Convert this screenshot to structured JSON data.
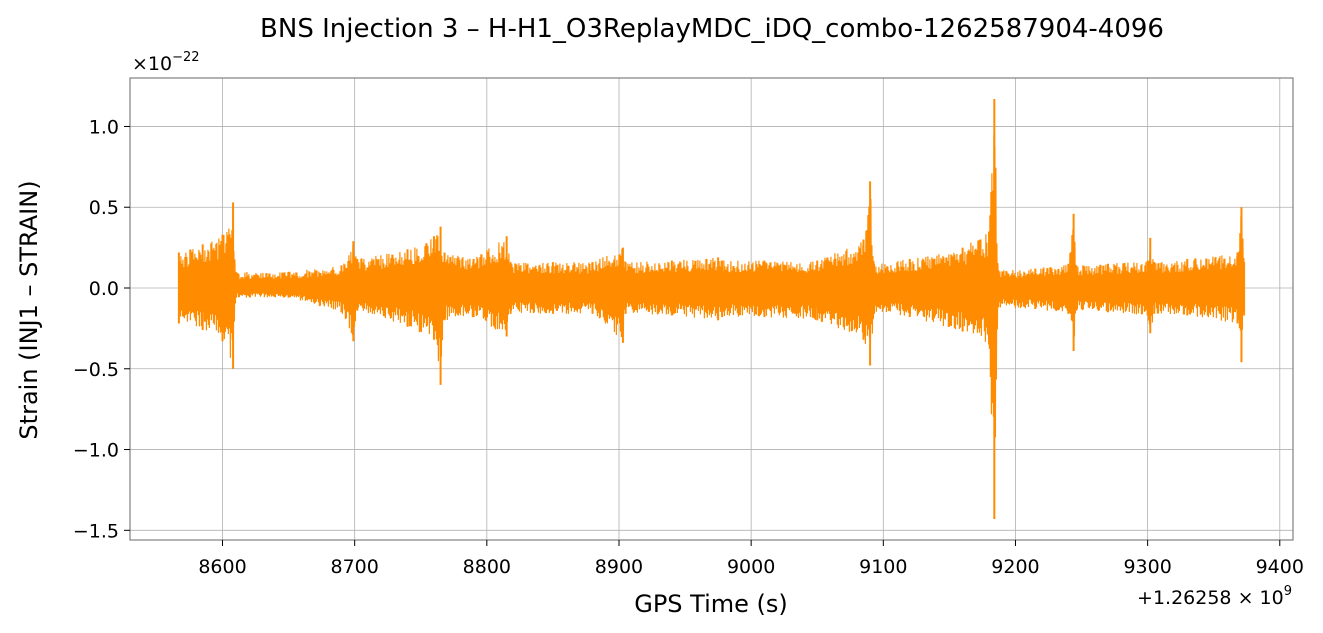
{
  "chart_data": {
    "type": "line",
    "title": "BNS Injection 3 – H-H1_O3ReplayMDC_iDQ_combo-1262587904-4096",
    "xlabel": "GPS Time (s)",
    "ylabel": "Strain (INJ1 – STRAIN)",
    "x_offset_text": "+1.26258",
    "x_offset_exp": "9",
    "y_scale_text": "×10",
    "y_scale_exp": "−22",
    "xlim": [
      8530,
      9410
    ],
    "ylim": [
      -1.56,
      1.3
    ],
    "x_ticks": [
      8600,
      8700,
      8800,
      8900,
      9000,
      9100,
      9200,
      9300,
      9400
    ],
    "x_tick_labels": [
      "8600",
      "8700",
      "8800",
      "8900",
      "9000",
      "9100",
      "9200",
      "9300",
      "9400"
    ],
    "y_ticks": [
      -1.5,
      -1.0,
      -0.5,
      0.0,
      0.5,
      1.0
    ],
    "y_tick_labels": [
      "−1.5",
      "−1.0",
      "−0.5",
      "0.0",
      "0.5",
      "1.0"
    ],
    "grid": true,
    "color": "#ff8c00",
    "series": [
      {
        "x": [
          8567,
          8585,
          8600,
          8608,
          8610,
          8650,
          8690,
          8699,
          8702,
          8740,
          8760,
          8765,
          8768,
          8790,
          8815,
          8818,
          8850,
          8880,
          8903,
          8905,
          8940,
          8975,
          8978,
          9010,
          9050,
          9085,
          9090,
          9093,
          9120,
          9160,
          9180,
          9184,
          9187,
          9215,
          9240,
          9244,
          9246,
          9270,
          9300,
          9302,
          9305,
          9330,
          9368,
          9371,
          9373
        ],
        "upper": [
          0.22,
          0.27,
          0.33,
          0.53,
          0.1,
          0.1,
          0.14,
          0.29,
          0.18,
          0.24,
          0.32,
          0.38,
          0.22,
          0.18,
          0.32,
          0.16,
          0.16,
          0.16,
          0.25,
          0.16,
          0.17,
          0.19,
          0.17,
          0.17,
          0.17,
          0.3,
          0.66,
          0.15,
          0.18,
          0.25,
          0.35,
          1.17,
          0.11,
          0.12,
          0.15,
          0.46,
          0.14,
          0.15,
          0.17,
          0.31,
          0.16,
          0.18,
          0.22,
          0.5,
          0.16
        ],
        "lower": [
          -0.22,
          -0.26,
          -0.33,
          -0.5,
          -0.06,
          -0.06,
          -0.15,
          -0.33,
          -0.14,
          -0.24,
          -0.32,
          -0.6,
          -0.2,
          -0.18,
          -0.3,
          -0.16,
          -0.16,
          -0.16,
          -0.34,
          -0.16,
          -0.17,
          -0.2,
          -0.18,
          -0.18,
          -0.2,
          -0.32,
          -0.48,
          -0.16,
          -0.18,
          -0.27,
          -0.35,
          -1.43,
          -0.12,
          -0.13,
          -0.16,
          -0.39,
          -0.14,
          -0.15,
          -0.17,
          -0.28,
          -0.16,
          -0.17,
          -0.22,
          -0.46,
          -0.17
        ]
      }
    ]
  }
}
